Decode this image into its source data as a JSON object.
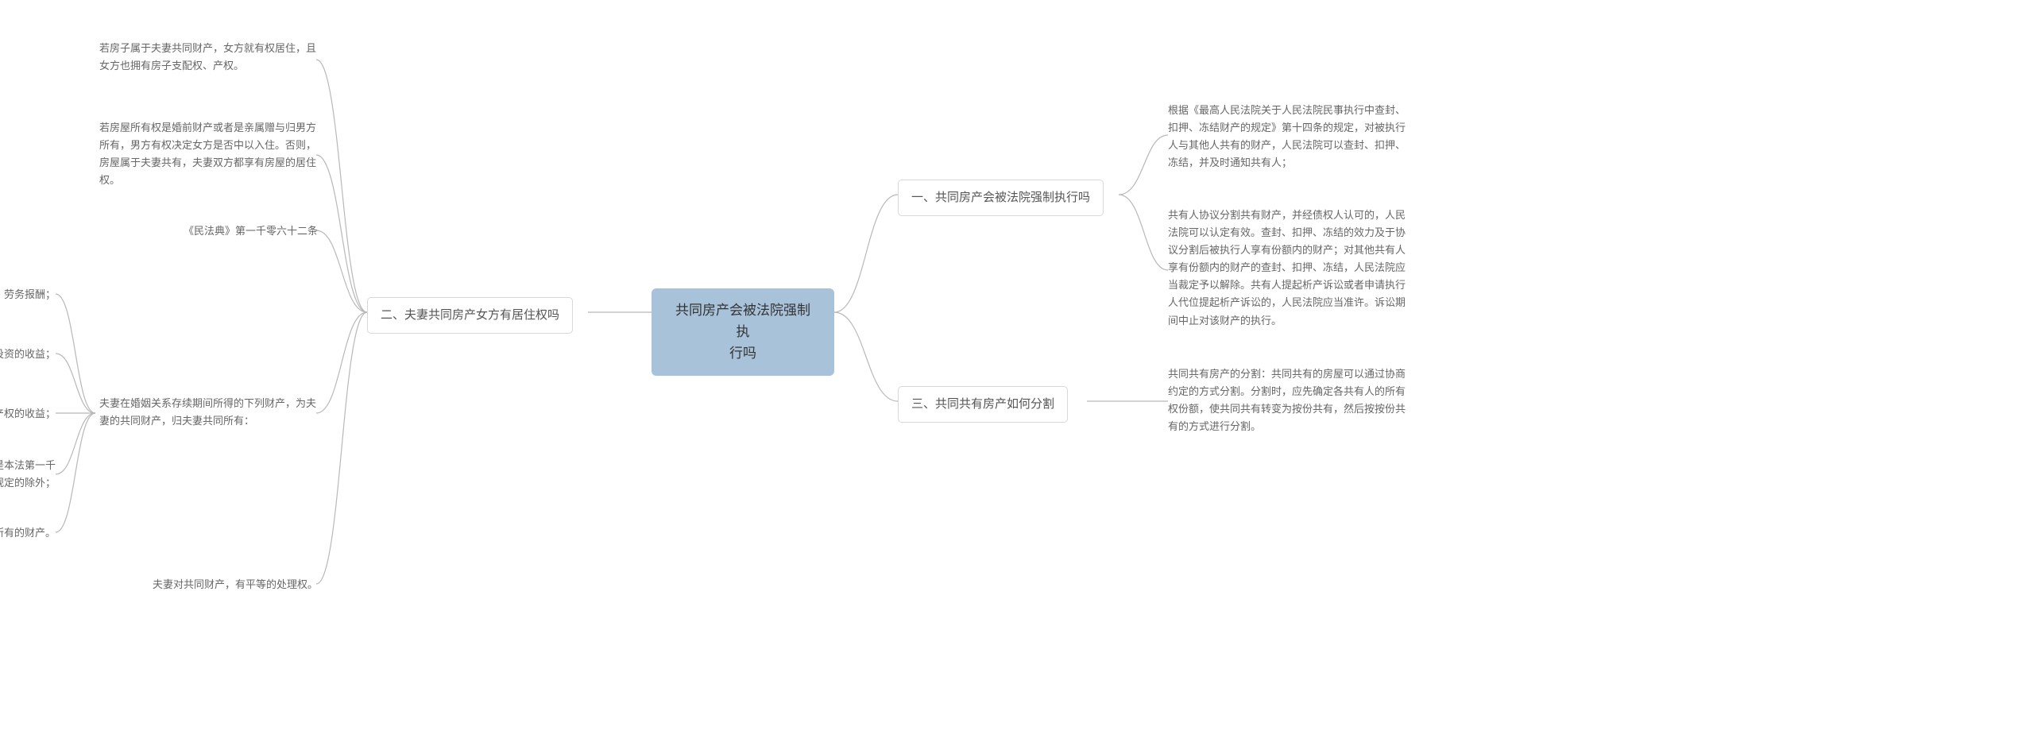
{
  "root": {
    "text": "共同房产会被法院强制执\n行吗"
  },
  "right": {
    "branch1": {
      "label": "一、共同房产会被法院强制执行吗",
      "leaf1": "根据《最高人民法院关于人民法院民事执行中查封、扣押、冻结财产的规定》第十四条的规定，对被执行人与其他人共有的财产，人民法院可以查封、扣押、冻结，并及时通知共有人；",
      "leaf2": "共有人协议分割共有财产，并经债权人认可的，人民法院可以认定有效。查封、扣押、冻结的效力及于协议分割后被执行人享有份额内的财产；对其他共有人享有份额内的财产的查封、扣押、冻结，人民法院应当裁定予以解除。共有人提起析产诉讼或者申请执行人代位提起析产诉讼的，人民法院应当准许。诉讼期间中止对该财产的执行。"
    },
    "branch3": {
      "label": "三、共同共有房产如何分割",
      "leaf1": "共同共有房产的分割：共同共有的房屋可以通过协商约定的方式分割。分割时，应先确定各共有人的所有权份额，使共同共有转变为按份共有，然后按按份共有的方式进行分割。"
    }
  },
  "left": {
    "branch2": {
      "label": "二、夫妻共同房产女方有居住权吗",
      "leaf1": "若房子属于夫妻共同财产，女方就有权居住，且女方也拥有房子支配权、产权。",
      "leaf2": "若房屋所有权是婚前财产或者是亲属赠与归男方所有，男方有权决定女方是否中以入住。否则，房屋属于夫妻共有，夫妻双方都享有房屋的居住权。",
      "leaf3": "《民法典》第一千零六十二条",
      "leaf4": {
        "text": "夫妻在婚姻关系存续期间所得的下列财产，为夫妻的共同财产，归夫妻共同所有：",
        "sub1": "（一）工资、奖金、劳务报酬；",
        "sub2": "（二）生产、经营、投资的收益；",
        "sub3": "（三）知识产权的收益；",
        "sub4": "（四）继承或者受赠的财产，但是本法第一千零六十三条第三项规定的除外；",
        "sub5": "（五）其他应当归共同所有的财产。"
      },
      "leaf5": "夫妻对共同财产，有平等的处理权。"
    }
  },
  "style": {
    "root_bg": "#a8c3d9",
    "edge_color": "#b8b8b8",
    "text_color": "#555555",
    "leaf_color": "#666666",
    "branch_border": "#d8d8d8",
    "bg": "#ffffff"
  }
}
